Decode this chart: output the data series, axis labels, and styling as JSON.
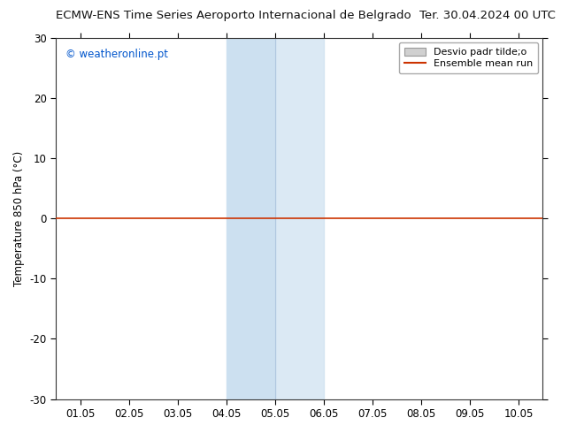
{
  "title_left": "ECMW-ENS Time Series Aeroporto Internacional de Belgrado",
  "title_right": "Ter. 30.04.2024 00 UTC",
  "ylabel": "Temperature 850 hPa (°C)",
  "watermark": "© weatheronline.pt",
  "ylim": [
    -30,
    30
  ],
  "yticks": [
    -30,
    -20,
    -10,
    0,
    10,
    20,
    30
  ],
  "xlim_start": 0.5,
  "xlim_end": 10.5,
  "xtick_positions": [
    1.0,
    2.0,
    3.0,
    4.0,
    5.0,
    6.0,
    7.0,
    8.0,
    9.0,
    10.0
  ],
  "xtick_labels": [
    "01.05",
    "02.05",
    "03.05",
    "04.05",
    "05.05",
    "06.05",
    "07.05",
    "08.05",
    "09.05",
    "10.05"
  ],
  "hline_y": 0.0,
  "hline_color": "#cc3300",
  "highlight1_xmin": 4.0,
  "highlight1_xmax": 5.0,
  "highlight2_xmin": 5.0,
  "highlight2_xmax": 6.0,
  "highlight_color": "#cce0f0",
  "highlight_alpha": 1.0,
  "legend_label1": "Desvio padr tilde;o",
  "legend_label2": "Ensemble mean run",
  "legend_patch_facecolor": "#d0d0d0",
  "legend_patch_edgecolor": "#999999",
  "legend_line_color": "#cc3300",
  "bg_color": "#ffffff",
  "plot_bg_color": "#ffffff",
  "font_size_title": 9.5,
  "font_size_axis": 8.5,
  "font_size_watermark": 8.5,
  "font_size_legend": 8.0,
  "watermark_color": "#0055cc"
}
